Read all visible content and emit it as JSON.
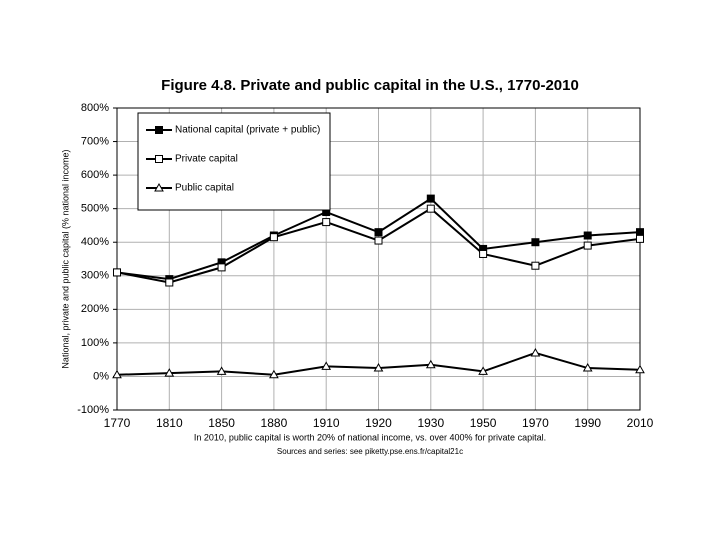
{
  "chart_data": {
    "type": "line",
    "title": "Figure 4.8. Private and public capital in the U.S., 1770-2010",
    "y_label": "National, private and public capital (% national income)",
    "notes": [
      "In 2010, public capital is worth 20% of national income, vs. over 400% for private capital.",
      "Sources and series: see piketty.pse.ens.fr/capital21c"
    ],
    "categories": [
      "1770",
      "1810",
      "1850",
      "1880",
      "1910",
      "1920",
      "1930",
      "1950",
      "1970",
      "1990",
      "2010"
    ],
    "series": [
      {
        "name": "National capital (private + public)",
        "color": "#000000",
        "marker": "filled-square",
        "values": [
          310,
          290,
          340,
          420,
          490,
          430,
          530,
          380,
          400,
          420,
          430
        ]
      },
      {
        "name": "Private capital",
        "color": "#000000",
        "marker": "open-square",
        "values": [
          310,
          280,
          325,
          415,
          460,
          405,
          500,
          365,
          330,
          390,
          410
        ]
      },
      {
        "name": "Public capital",
        "color": "#000000",
        "marker": "open-triangle",
        "values": [
          5,
          10,
          15,
          5,
          30,
          25,
          35,
          15,
          70,
          25,
          20
        ]
      }
    ],
    "ylim": [
      -100,
      800
    ],
    "yticks": [
      {
        "value": -100,
        "label": "-100%"
      },
      {
        "value": 0,
        "label": "0%"
      },
      {
        "value": 100,
        "label": "100%"
      },
      {
        "value": 200,
        "label": "200%"
      },
      {
        "value": 300,
        "label": "300%"
      },
      {
        "value": 400,
        "label": "400%"
      },
      {
        "value": 500,
        "label": "500%"
      },
      {
        "value": 600,
        "label": "600%"
      },
      {
        "value": 700,
        "label": "700%"
      },
      {
        "value": 800,
        "label": "800%"
      }
    ],
    "grid": true
  }
}
